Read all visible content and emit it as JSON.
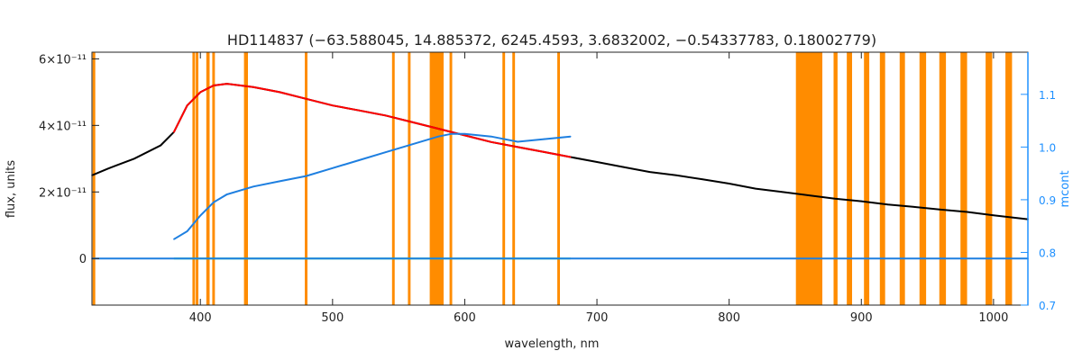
{
  "chart_data": {
    "type": "line",
    "title": "HD114837    (−63.588045, 14.885372, 6245.4593, 3.6832002, −0.54337783, 0.18002779)",
    "xlabel": "wavelength, nm",
    "ylabel": "flux, units",
    "ylabel_right": "mcont",
    "xlim": [
      318,
      1026
    ],
    "ylim": [
      -1.4e-11,
      6.2e-11
    ],
    "ylim_right": [
      0.7,
      1.18
    ],
    "x_ticks": [
      400,
      500,
      600,
      700,
      800,
      900,
      1000
    ],
    "x_tick_labels": [
      "400",
      "500",
      "600",
      "700",
      "800",
      "900",
      "1000"
    ],
    "y_ticks": [
      0,
      2e-11,
      4e-11,
      6e-11
    ],
    "y_tick_labels": [
      "0",
      "2×10⁻¹¹",
      "4×10⁻¹¹",
      "6×10⁻¹¹"
    ],
    "y_right_ticks": [
      0.7,
      0.8,
      0.9,
      1.0,
      1.1
    ],
    "y_right_tick_labels": [
      "0.7",
      "0.8",
      "0.9",
      "1.0",
      "1.1"
    ],
    "masked_regions_nm": [
      [
        318.5,
        320.5
      ],
      [
        394,
        396
      ],
      [
        396.5,
        398.5
      ],
      [
        404.5,
        407
      ],
      [
        409,
        411
      ],
      [
        433,
        436
      ],
      [
        479,
        481
      ],
      [
        545,
        547
      ],
      [
        557,
        559
      ],
      [
        573.5,
        584
      ],
      [
        588.5,
        590.5
      ],
      [
        628.5,
        630.5
      ],
      [
        636,
        638
      ],
      [
        670,
        672
      ],
      [
        850.5,
        870.5
      ],
      [
        879,
        882
      ],
      [
        889,
        893
      ],
      [
        902,
        906
      ],
      [
        914,
        918
      ],
      [
        929,
        933
      ],
      [
        944,
        949
      ],
      [
        959,
        964
      ],
      [
        975,
        980
      ],
      [
        994,
        999
      ],
      [
        1009,
        1014
      ]
    ],
    "series": [
      {
        "color": "#000000",
        "x": [
          318,
          330,
          350,
          370,
          380,
          390,
          400,
          410,
          420,
          440,
          460,
          480,
          500,
          520,
          540,
          560,
          580,
          600,
          620,
          640,
          660,
          680,
          700,
          720,
          740,
          760,
          780,
          800,
          820,
          840,
          860,
          880,
          900,
          920,
          940,
          960,
          980,
          1000,
          1026
        ],
        "y": [
          2.5e-11,
          2.7e-11,
          3e-11,
          3.4e-11,
          3.8e-11,
          4.6e-11,
          5e-11,
          5.2e-11,
          5.25e-11,
          5.15e-11,
          5e-11,
          4.8e-11,
          4.6e-11,
          4.45e-11,
          4.3e-11,
          4.1e-11,
          3.9e-11,
          3.7e-11,
          3.5e-11,
          3.35e-11,
          3.2e-11,
          3.05e-11,
          2.9e-11,
          2.75e-11,
          2.6e-11,
          2.5e-11,
          2.38e-11,
          2.25e-11,
          2.1e-11,
          2e-11,
          1.9e-11,
          1.8e-11,
          1.72e-11,
          1.62e-11,
          1.55e-11,
          1.47e-11,
          1.4e-11,
          1.3e-11,
          1.18e-11
        ]
      },
      {
        "color": "#ff0000",
        "x": [
          380,
          390,
          400,
          410,
          420,
          440,
          460,
          480,
          500,
          520,
          540,
          560,
          580,
          600,
          620,
          640,
          660,
          680
        ],
        "y": [
          3.8e-11,
          4.6e-11,
          5e-11,
          5.2e-11,
          5.25e-11,
          5.15e-11,
          5e-11,
          4.8e-11,
          4.6e-11,
          4.45e-11,
          4.3e-11,
          4.1e-11,
          3.9e-11,
          3.7e-11,
          3.5e-11,
          3.35e-11,
          3.2e-11,
          3.05e-11
        ]
      },
      {
        "color": "#1e7fe0",
        "axis": "right",
        "x": [
          380,
          390,
          400,
          410,
          420,
          440,
          460,
          480,
          500,
          520,
          540,
          560,
          580,
          590,
          600,
          620,
          640,
          660,
          680
        ],
        "y": [
          0.825,
          0.84,
          0.87,
          0.895,
          0.91,
          0.925,
          0.935,
          0.945,
          0.96,
          0.975,
          0.99,
          1.005,
          1.02,
          1.025,
          1.025,
          1.02,
          1.01,
          1.015,
          1.02
        ]
      },
      {
        "color": "#22ee77",
        "x": [
          380,
          400,
          420,
          440,
          460,
          480,
          500,
          520,
          540,
          560,
          580,
          600,
          620,
          640,
          660,
          680
        ],
        "y": [
          0,
          0,
          0,
          0,
          0,
          0,
          0,
          0,
          0,
          0,
          0,
          0,
          0,
          0,
          0,
          0
        ]
      },
      {
        "color": "#1e7fe0",
        "x": [
          318,
          400,
          500,
          600,
          700,
          800,
          900,
          1000,
          1026
        ],
        "y": [
          0,
          0,
          0,
          0,
          0,
          0,
          0,
          0,
          0
        ]
      }
    ],
    "colors": {
      "mask": "#ff8c00",
      "model": "#ff0000",
      "observed": "#000000",
      "continuum": "#1e7fe0",
      "residual": "#22ee77",
      "axis_right": "#1e90ff"
    }
  }
}
